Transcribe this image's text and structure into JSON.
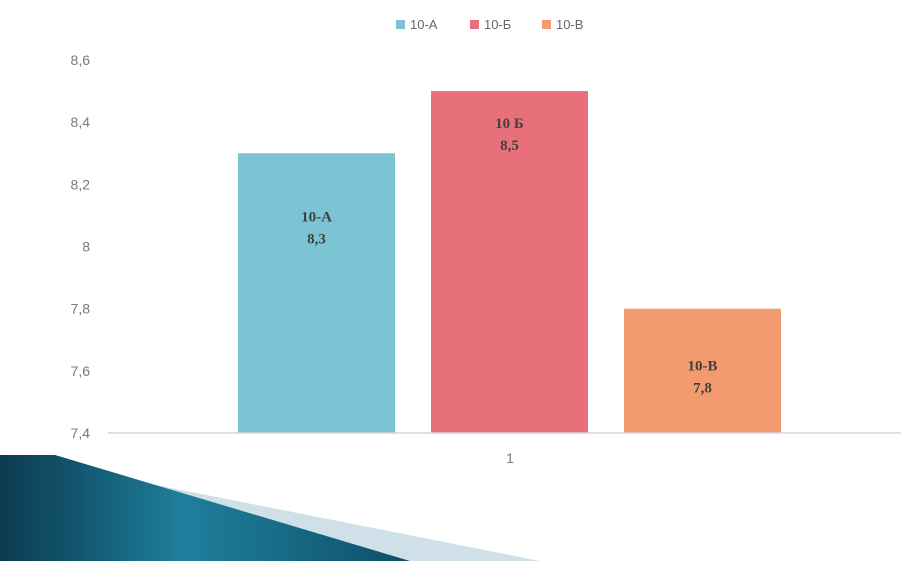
{
  "chart_data": {
    "type": "bar",
    "categories": [
      "1"
    ],
    "series": [
      {
        "name": "10-А",
        "values": [
          8.3
        ],
        "color": "#7CC4D4",
        "label_lines": [
          "10-А",
          "8,3"
        ]
      },
      {
        "name": "10-Б",
        "values": [
          8.5
        ],
        "color": "#E8707A",
        "label_lines": [
          "10 Б",
          "8,5"
        ]
      },
      {
        "name": "10-В",
        "values": [
          7.8
        ],
        "color": "#F29B6E",
        "label_lines": [
          "10-В",
          "7,8"
        ]
      }
    ],
    "title": "",
    "xlabel": "",
    "ylabel": "",
    "ylim": [
      7.4,
      8.6
    ],
    "y_ticks": [
      7.4,
      7.6,
      7.8,
      8,
      8.2,
      8.4,
      8.6
    ],
    "y_tick_labels": [
      "7,4",
      "7,6",
      "7,8",
      "8",
      "8,2",
      "8,4",
      "8,6"
    ],
    "grid": false,
    "legend_position": "top-center"
  },
  "colors": {
    "axis": "#d6d6d6",
    "decoration_dark": "#0b3a4f",
    "decoration_teal": "#1e7f9c",
    "decoration_light": "#cfe0e8"
  }
}
